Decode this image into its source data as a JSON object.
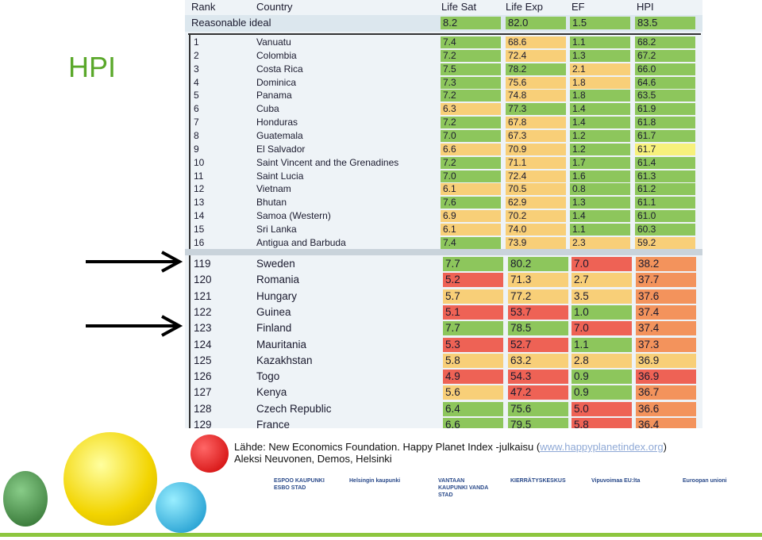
{
  "slide_title": "HPI",
  "table": {
    "headers": [
      "Rank",
      "Country",
      "Life Sat",
      "Life Exp",
      "EF",
      "HPI"
    ],
    "palette": {
      "g": "#8dc65c",
      "y": "#f8cf78",
      "p": "#f7f17c",
      "o": "#f3935c",
      "r": "#ee6255"
    },
    "ideal": {
      "label": "Reasonable ideal",
      "values": [
        "8.2",
        "82.0",
        "1.5",
        "83.5"
      ],
      "colors": [
        "g",
        "g",
        "g",
        "g"
      ]
    },
    "top_rows": [
      {
        "rank": "1",
        "country": "Vanuatu",
        "values": [
          "7.4",
          "68.6",
          "1.1",
          "68.2"
        ],
        "colors": [
          "g",
          "y",
          "g",
          "g"
        ]
      },
      {
        "rank": "2",
        "country": "Colombia",
        "values": [
          "7.2",
          "72.4",
          "1.3",
          "67.2"
        ],
        "colors": [
          "g",
          "y",
          "g",
          "g"
        ]
      },
      {
        "rank": "3",
        "country": "Costa Rica",
        "values": [
          "7.5",
          "78.2",
          "2.1",
          "66.0"
        ],
        "colors": [
          "g",
          "g",
          "y",
          "g"
        ]
      },
      {
        "rank": "4",
        "country": "Dominica",
        "values": [
          "7.3",
          "75.6",
          "1.8",
          "64.6"
        ],
        "colors": [
          "g",
          "y",
          "y",
          "g"
        ]
      },
      {
        "rank": "5",
        "country": "Panama",
        "values": [
          "7.2",
          "74.8",
          "1.8",
          "63.5"
        ],
        "colors": [
          "g",
          "y",
          "g",
          "g"
        ]
      },
      {
        "rank": "6",
        "country": "Cuba",
        "values": [
          "6.3",
          "77.3",
          "1.4",
          "61.9"
        ],
        "colors": [
          "y",
          "g",
          "g",
          "g"
        ]
      },
      {
        "rank": "7",
        "country": "Honduras",
        "values": [
          "7.2",
          "67.8",
          "1.4",
          "61.8"
        ],
        "colors": [
          "g",
          "y",
          "g",
          "g"
        ]
      },
      {
        "rank": "8",
        "country": "Guatemala",
        "values": [
          "7.0",
          "67.3",
          "1.2",
          "61.7"
        ],
        "colors": [
          "g",
          "y",
          "g",
          "g"
        ]
      },
      {
        "rank": "9",
        "country": "El Salvador",
        "values": [
          "6.6",
          "70.9",
          "1.2",
          "61.7"
        ],
        "colors": [
          "y",
          "y",
          "g",
          "p"
        ]
      },
      {
        "rank": "10",
        "country": "Saint Vincent and the Grenadines",
        "values": [
          "7.2",
          "71.1",
          "1.7",
          "61.4"
        ],
        "colors": [
          "g",
          "y",
          "g",
          "g"
        ]
      },
      {
        "rank": "11",
        "country": "Saint Lucia",
        "values": [
          "7.0",
          "72.4",
          "1.6",
          "61.3"
        ],
        "colors": [
          "g",
          "y",
          "g",
          "g"
        ]
      },
      {
        "rank": "12",
        "country": "Vietnam",
        "values": [
          "6.1",
          "70.5",
          "0.8",
          "61.2"
        ],
        "colors": [
          "y",
          "y",
          "g",
          "g"
        ]
      },
      {
        "rank": "13",
        "country": "Bhutan",
        "values": [
          "7.6",
          "62.9",
          "1.3",
          "61.1"
        ],
        "colors": [
          "g",
          "y",
          "g",
          "g"
        ]
      },
      {
        "rank": "14",
        "country": "Samoa (Western)",
        "values": [
          "6.9",
          "70.2",
          "1.4",
          "61.0"
        ],
        "colors": [
          "y",
          "y",
          "g",
          "g"
        ]
      },
      {
        "rank": "15",
        "country": "Sri Lanka",
        "values": [
          "6.1",
          "74.0",
          "1.1",
          "60.3"
        ],
        "colors": [
          "y",
          "y",
          "g",
          "g"
        ]
      },
      {
        "rank": "16",
        "country": "Antigua and Barbuda",
        "values": [
          "7.4",
          "73.9",
          "2.3",
          "59.2"
        ],
        "colors": [
          "g",
          "y",
          "y",
          "y"
        ]
      }
    ],
    "bottom_rows": [
      {
        "rank": "119",
        "country": "Sweden",
        "values": [
          "7.7",
          "80.2",
          "7.0",
          "38.2"
        ],
        "colors": [
          "g",
          "g",
          "r",
          "o"
        ]
      },
      {
        "rank": "120",
        "country": "Romania",
        "values": [
          "5.2",
          "71.3",
          "2.7",
          "37.7"
        ],
        "colors": [
          "r",
          "y",
          "y",
          "o"
        ]
      },
      {
        "rank": "121",
        "country": "Hungary",
        "values": [
          "5.7",
          "77.2",
          "3.5",
          "37.6"
        ],
        "colors": [
          "y",
          "y",
          "y",
          "o"
        ]
      },
      {
        "rank": "122",
        "country": "Guinea",
        "values": [
          "5.1",
          "53.7",
          "1.0",
          "37.4"
        ],
        "colors": [
          "r",
          "r",
          "g",
          "o"
        ]
      },
      {
        "rank": "123",
        "country": "Finland",
        "values": [
          "7.7",
          "78.5",
          "7.0",
          "37.4"
        ],
        "colors": [
          "g",
          "g",
          "r",
          "o"
        ]
      },
      {
        "rank": "124",
        "country": "Mauritania",
        "values": [
          "5.3",
          "52.7",
          "1.1",
          "37.3"
        ],
        "colors": [
          "r",
          "r",
          "g",
          "o"
        ]
      },
      {
        "rank": "125",
        "country": "Kazakhstan",
        "values": [
          "5.8",
          "63.2",
          "2.8",
          "36.9"
        ],
        "colors": [
          "y",
          "y",
          "y",
          "y"
        ]
      },
      {
        "rank": "126",
        "country": "Togo",
        "values": [
          "4.9",
          "54.3",
          "0.9",
          "36.9"
        ],
        "colors": [
          "r",
          "r",
          "g",
          "r"
        ]
      },
      {
        "rank": "127",
        "country": "Kenya",
        "values": [
          "5.6",
          "47.2",
          "0.9",
          "36.7"
        ],
        "colors": [
          "y",
          "r",
          "g",
          "o"
        ]
      },
      {
        "rank": "128",
        "country": "Czech Republic",
        "values": [
          "6.4",
          "75.6",
          "5.0",
          "36.6"
        ],
        "colors": [
          "g",
          "g",
          "r",
          "o"
        ]
      },
      {
        "rank": "129",
        "country": "France",
        "values": [
          "6.6",
          "79.5",
          "5.8",
          "36.4"
        ],
        "colors": [
          "g",
          "g",
          "r",
          "o"
        ]
      }
    ]
  },
  "source": {
    "prefix": "Lähde: New Economics Foundation. Happy Planet Index -julkaisu (",
    "link": "www.happyplanetindex.org",
    "suffix": ")",
    "author": "Aleksi Neuvonen, Demos, Helsinki"
  },
  "logos": [
    "ESPOO KAUPUNKI ESBO STAD",
    "Helsingin kaupunki",
    "VANTAAN KAUPUNKI VANDA STAD",
    "KIERRÄTYSKESKUS",
    "Vipuvoimaa EU:lta",
    "Euroopan unioni"
  ]
}
